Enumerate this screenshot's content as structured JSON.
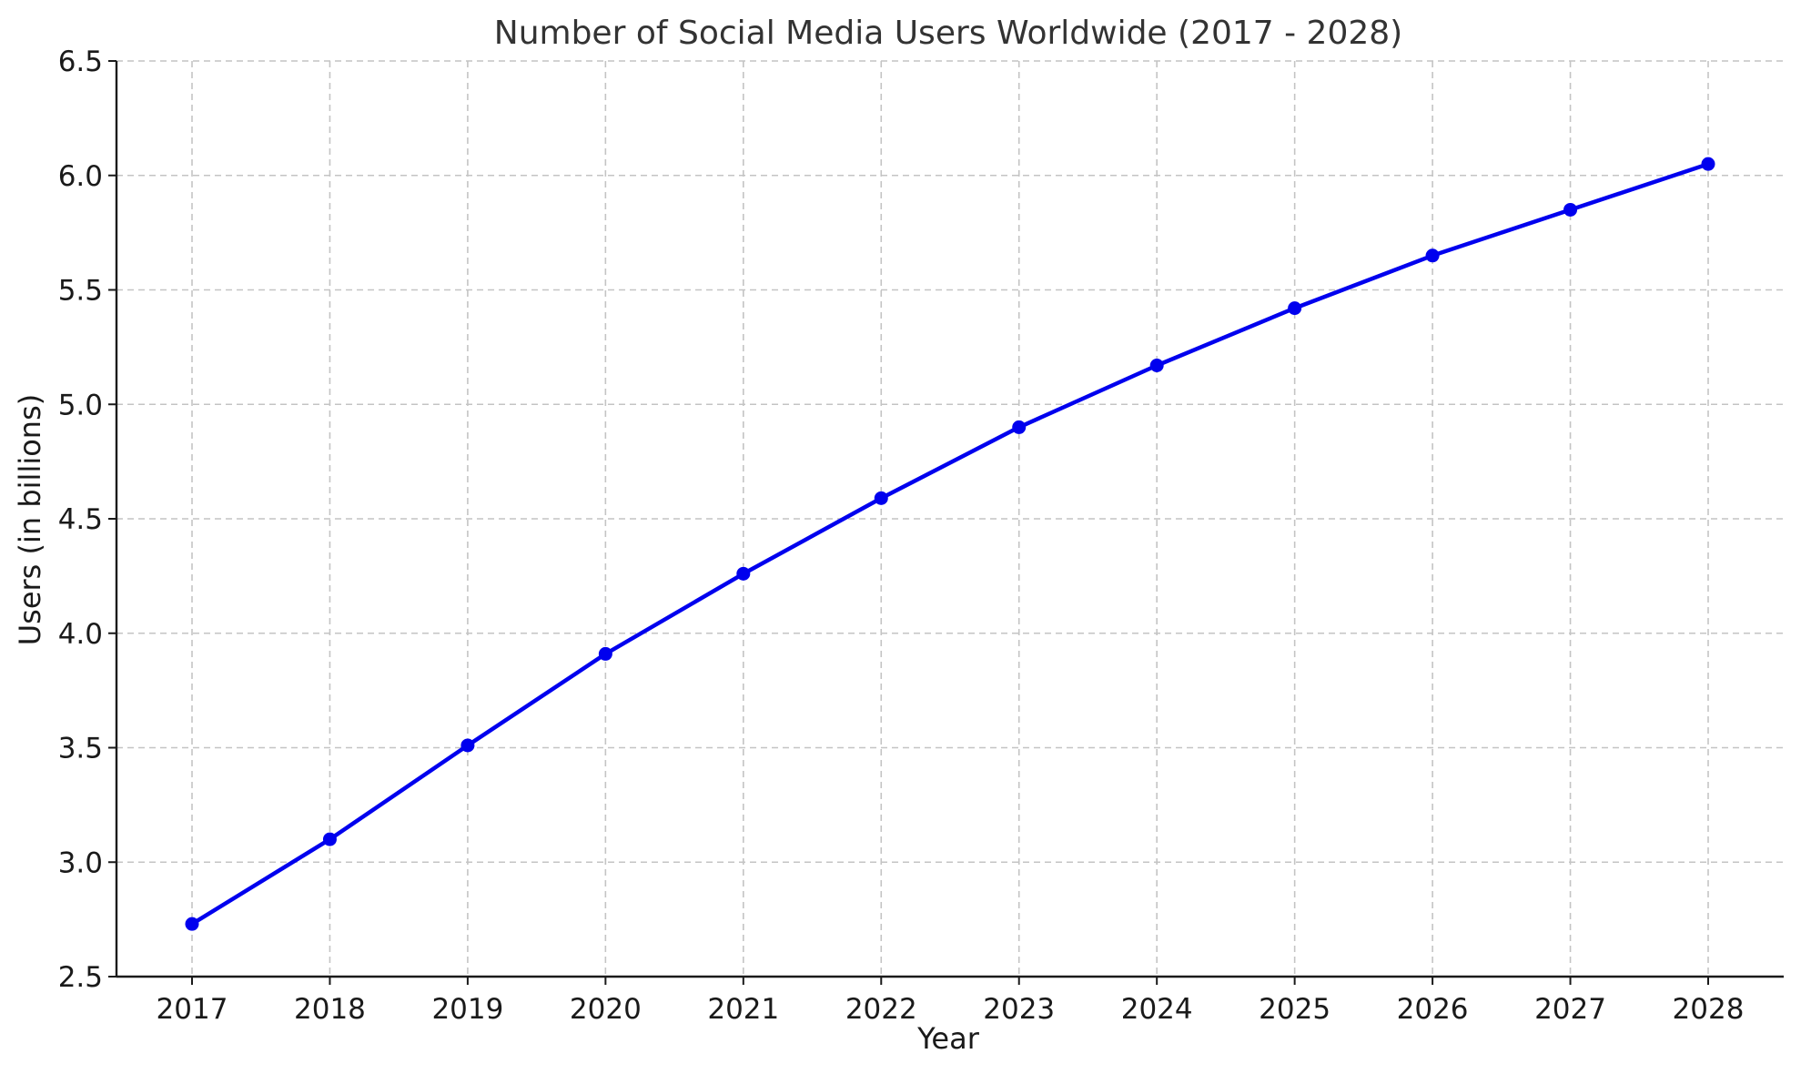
{
  "chart_data": {
    "type": "line",
    "title": "Number of Social Media Users Worldwide (2017 - 2028)",
    "xlabel": "Year",
    "ylabel": "Users (in billions)",
    "categories": [
      "2017",
      "2018",
      "2019",
      "2020",
      "2021",
      "2022",
      "2023",
      "2024",
      "2025",
      "2026",
      "2027",
      "2028"
    ],
    "series": [
      {
        "values": [
          2.73,
          3.1,
          3.51,
          3.91,
          4.26,
          4.59,
          4.9,
          5.17,
          5.42,
          5.65,
          5.85,
          6.05
        ],
        "color": "#0000ee"
      }
    ],
    "ylim": [
      2.5,
      6.5
    ],
    "yticks": [
      "2.5",
      "3.0",
      "3.5",
      "4.0",
      "4.5",
      "5.0",
      "5.5",
      "6.0",
      "6.5"
    ],
    "grid": true,
    "marker": "circle",
    "legend": "none"
  }
}
